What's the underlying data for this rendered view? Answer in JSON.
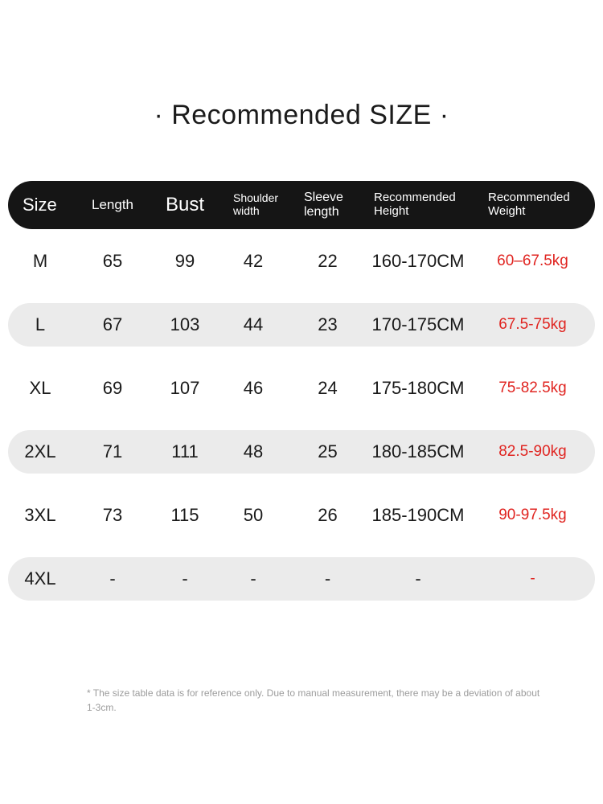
{
  "title": "· Recommended SIZE ·",
  "footnote": "* The size table data is for reference only. Due to manual measurement, there may be a deviation of about 1-3cm.",
  "colors": {
    "header_bg": "#151515",
    "header_text": "#ffffff",
    "alt_row_bg": "#ebebeb",
    "accent_red": "#e02420",
    "body_text": "#1a1a1a",
    "footnote_text": "#9c9c9c"
  },
  "chart_data": {
    "type": "table",
    "title": "· Recommended SIZE ·",
    "columns": [
      "Size",
      "Length",
      "Bust",
      "Shoulder width",
      "Sleeve length",
      "Recommended Height",
      "Recommended Weight"
    ],
    "rows": [
      [
        "M",
        "65",
        "99",
        "42",
        "22",
        "160-170CM",
        "60–67.5kg"
      ],
      [
        "L",
        "67",
        "103",
        "44",
        "23",
        "170-175CM",
        "67.5-75kg"
      ],
      [
        "XL",
        "69",
        "107",
        "46",
        "24",
        "175-180CM",
        "75-82.5kg"
      ],
      [
        "2XL",
        "71",
        "111",
        "48",
        "25",
        "180-185CM",
        "82.5-90kg"
      ],
      [
        "3XL",
        "73",
        "115",
        "50",
        "26",
        "185-190CM",
        "90-97.5kg"
      ],
      [
        "4XL",
        "-",
        "-",
        "-",
        "-",
        "-",
        "-"
      ]
    ]
  }
}
